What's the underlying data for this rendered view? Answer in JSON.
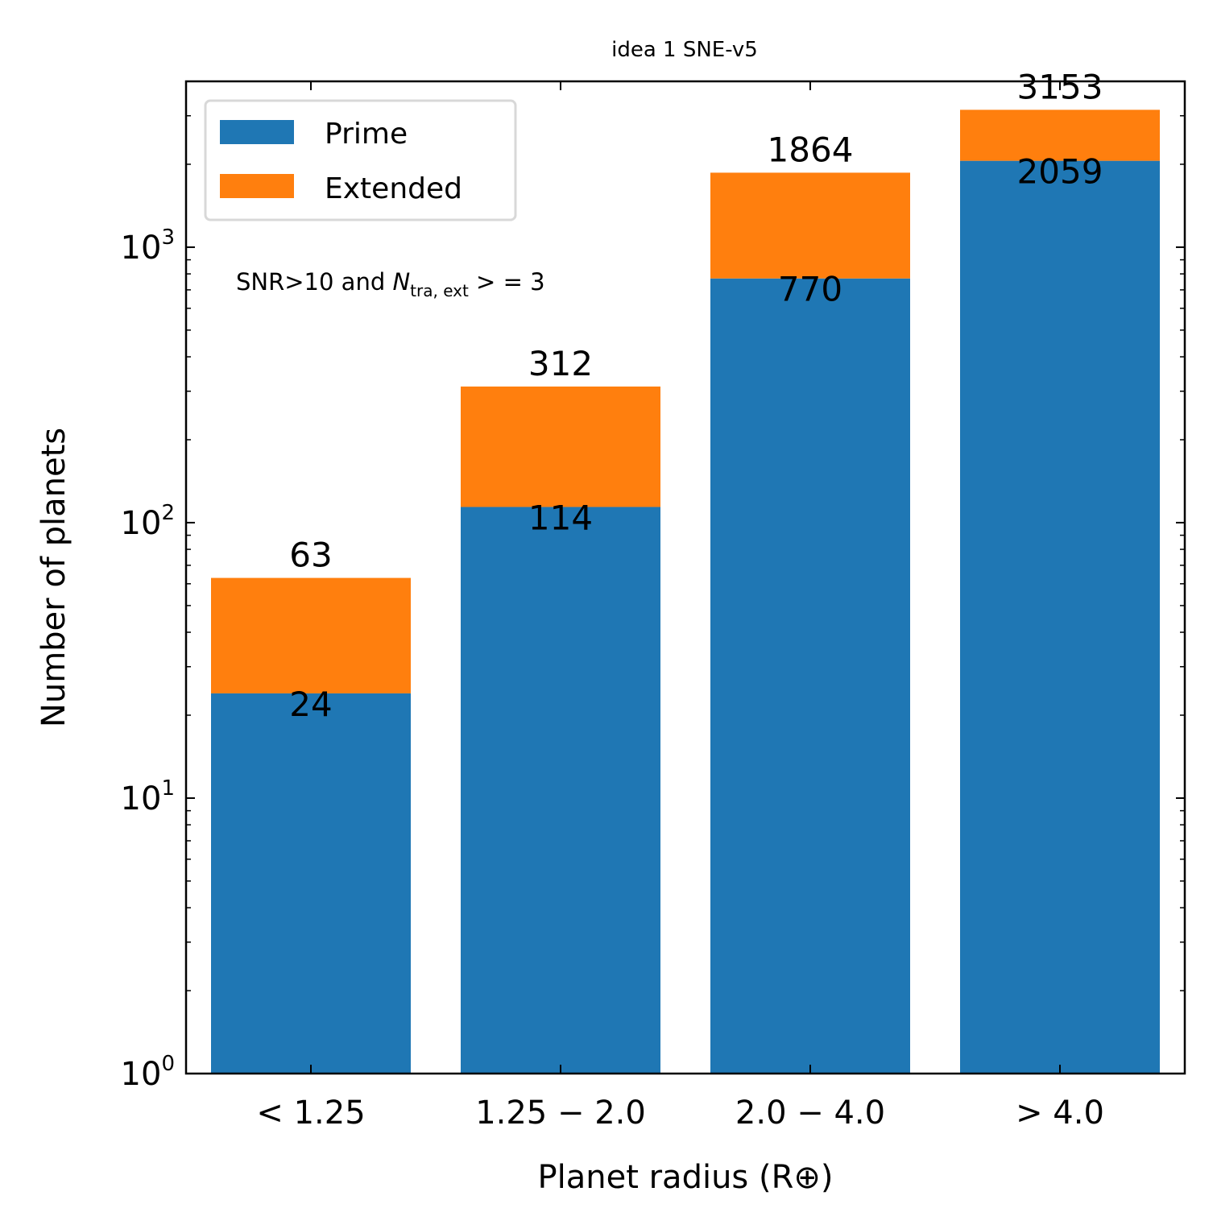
{
  "chart_data": {
    "type": "bar",
    "stacked": true,
    "title": "idea 1 SNE-v5",
    "xlabel": "Planet radius (R⊕)",
    "ylabel": "Number of planets",
    "yscale": "log",
    "ylim": [
      1,
      4000
    ],
    "categories": [
      "< 1.25",
      "1.25 − 2.0",
      "2.0 − 4.0",
      "> 4.0"
    ],
    "series": [
      {
        "name": "Prime",
        "values": [
          24,
          114,
          770,
          2059
        ],
        "color": "#1f77b4"
      },
      {
        "name": "Extended",
        "values": [
          39,
          198,
          1094,
          1094
        ],
        "color": "#ff7f0e"
      }
    ],
    "totals": [
      63,
      312,
      1864,
      3153
    ],
    "prime_labels": [
      24,
      114,
      770,
      2059
    ],
    "yticks": [
      {
        "base": "10",
        "exp": "0",
        "value": 1
      },
      {
        "base": "10",
        "exp": "1",
        "value": 10
      },
      {
        "base": "10",
        "exp": "2",
        "value": 100
      },
      {
        "base": "10",
        "exp": "3",
        "value": 1000
      }
    ],
    "legend": {
      "position": "upper-left",
      "entries": [
        "Prime",
        "Extended"
      ]
    },
    "annotation": {
      "prefix": "SNR>10 and ",
      "symbol": "N",
      "subscript": "tra, ext",
      "suffix": " > = 3"
    },
    "grid": false
  }
}
